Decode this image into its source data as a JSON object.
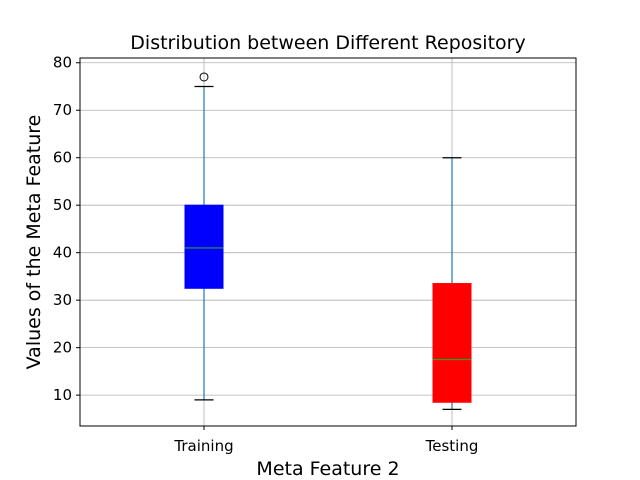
{
  "chart_data": {
    "type": "box",
    "title": "Distribution between Different Repository",
    "xlabel": "Meta Feature 2",
    "ylabel": "Values of the Meta Feature",
    "ylim": [
      3.5,
      81
    ],
    "yticks": [
      10,
      20,
      30,
      40,
      50,
      60,
      70,
      80
    ],
    "grid": true,
    "categories": [
      "Training",
      "Testing"
    ],
    "boxes": [
      {
        "category": "Training",
        "whisker_low": 9,
        "q1": 32.5,
        "median": 41,
        "q3": 50,
        "whisker_high": 75,
        "outliers": [
          77
        ],
        "fill": "#0000ff"
      },
      {
        "category": "Testing",
        "whisker_low": 7,
        "q1": 8.5,
        "median": 17.5,
        "q3": 33.5,
        "whisker_high": 60,
        "outliers": [],
        "fill": "#ff0000"
      }
    ],
    "colors": {
      "whisker": "#1f77b4",
      "median": "#2ca02c",
      "grid": "#b0b0b0"
    }
  }
}
